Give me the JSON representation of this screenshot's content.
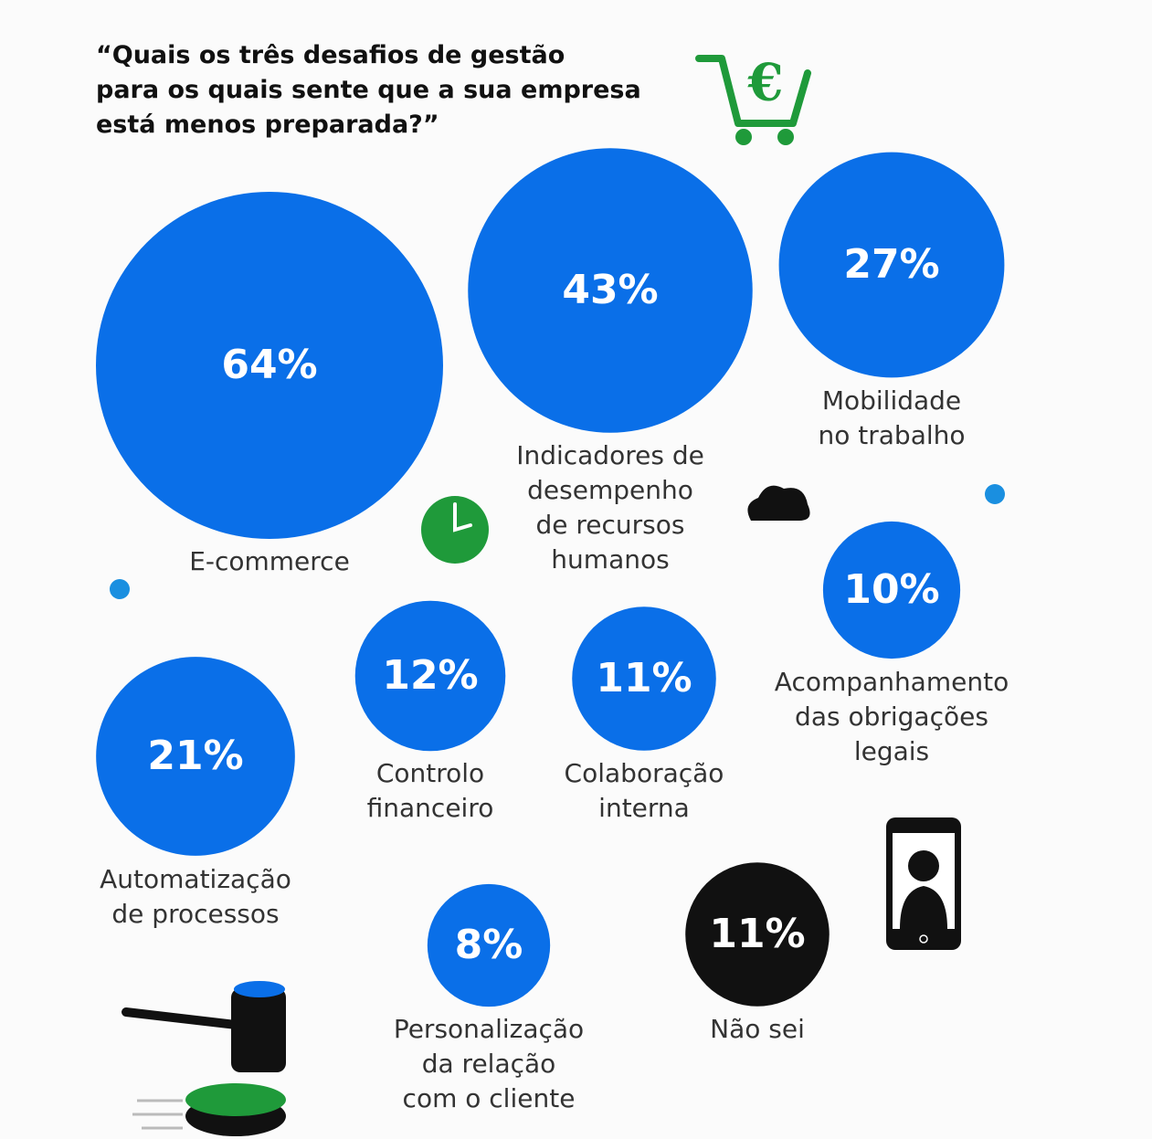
{
  "chart_data": {
    "type": "bubble",
    "title": "“Quais os três desafios de gestão\npara os quais sente que a sua empresa\nestá menos preparada?”",
    "categories": [
      "E-commerce",
      "Indicadores de\ndesempenho\nde recursos\nhumanos",
      "Mobilidade\nno trabalho",
      "Acompanhamento\ndas obrigações\nlegais",
      "Controlo\nfinanceiro",
      "Colaboração\ninterna",
      "Automatização\nde processos",
      "Personalização\nda relação\ncom o cliente",
      "Não sei"
    ],
    "values": [
      64,
      43,
      27,
      10,
      12,
      11,
      21,
      8,
      11
    ],
    "value_labels": [
      "64%",
      "43%",
      "27%",
      "10%",
      "12%",
      "11%",
      "21%",
      "8%",
      "11%"
    ],
    "colors": [
      "#0a6fe8",
      "#0a6fe8",
      "#0a6fe8",
      "#0a6fe8",
      "#0a6fe8",
      "#0a6fe8",
      "#0a6fe8",
      "#0a6fe8",
      "#111111"
    ]
  }
}
